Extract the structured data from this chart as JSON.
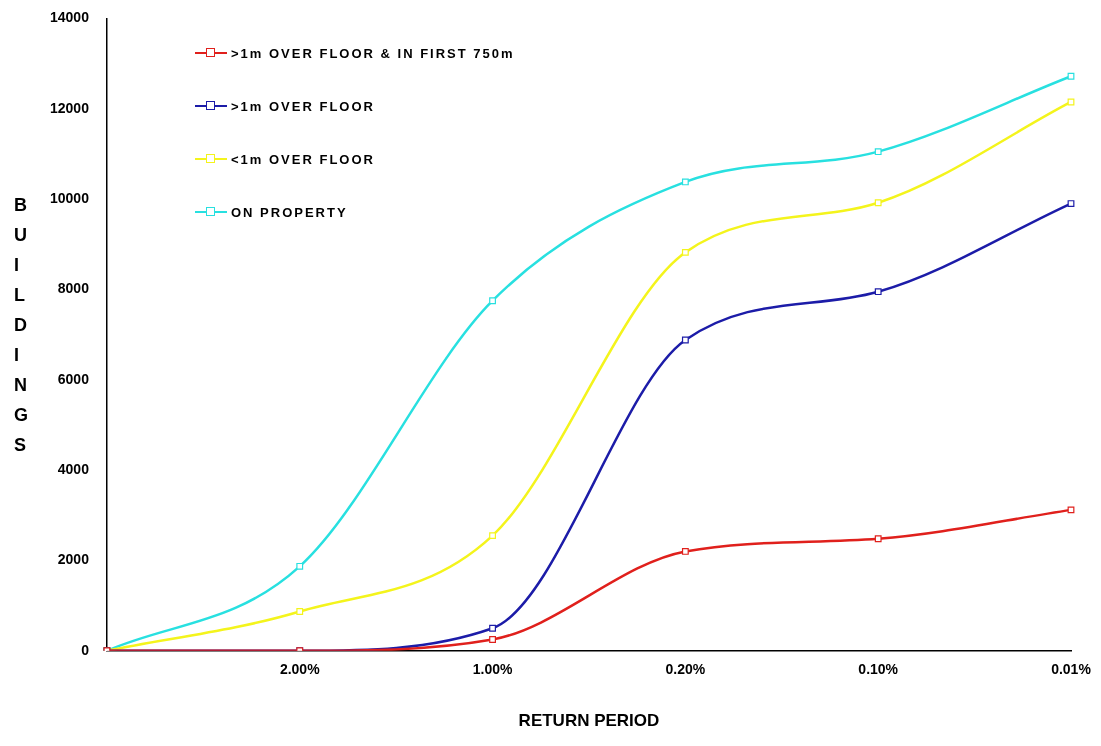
{
  "chart_data": {
    "type": "line",
    "xlabel": "RETURN PERIOD",
    "ylabel": "BUILDINGS",
    "categories": [
      null,
      "2.00%",
      "1.00%",
      "0.20%",
      "0.10%",
      "0.01%"
    ],
    "series": [
      {
        "name": ">1m OVER FLOOR & IN FIRST 750m",
        "color": "#e0201c",
        "values": [
          0,
          0,
          250,
          2200,
          2480,
          3120
        ]
      },
      {
        "name": ">1m OVER FLOOR",
        "color": "#1c1ca8",
        "values": [
          0,
          0,
          500,
          6880,
          7950,
          9900
        ]
      },
      {
        "name": "<1m OVER FLOOR",
        "color": "#f4f41c",
        "values": [
          0,
          870,
          2550,
          8820,
          9920,
          12150
        ]
      },
      {
        "name": "ON PROPERTY",
        "color": "#28e0e0",
        "values": [
          0,
          1870,
          7750,
          10380,
          11050,
          12720
        ]
      }
    ],
    "ylim": [
      0,
      14000
    ],
    "yticks": [
      0,
      2000,
      4000,
      6000,
      8000,
      10000,
      12000,
      14000
    ],
    "grid": false,
    "legend": "top left",
    "marker": "square",
    "line_style": "solid"
  }
}
